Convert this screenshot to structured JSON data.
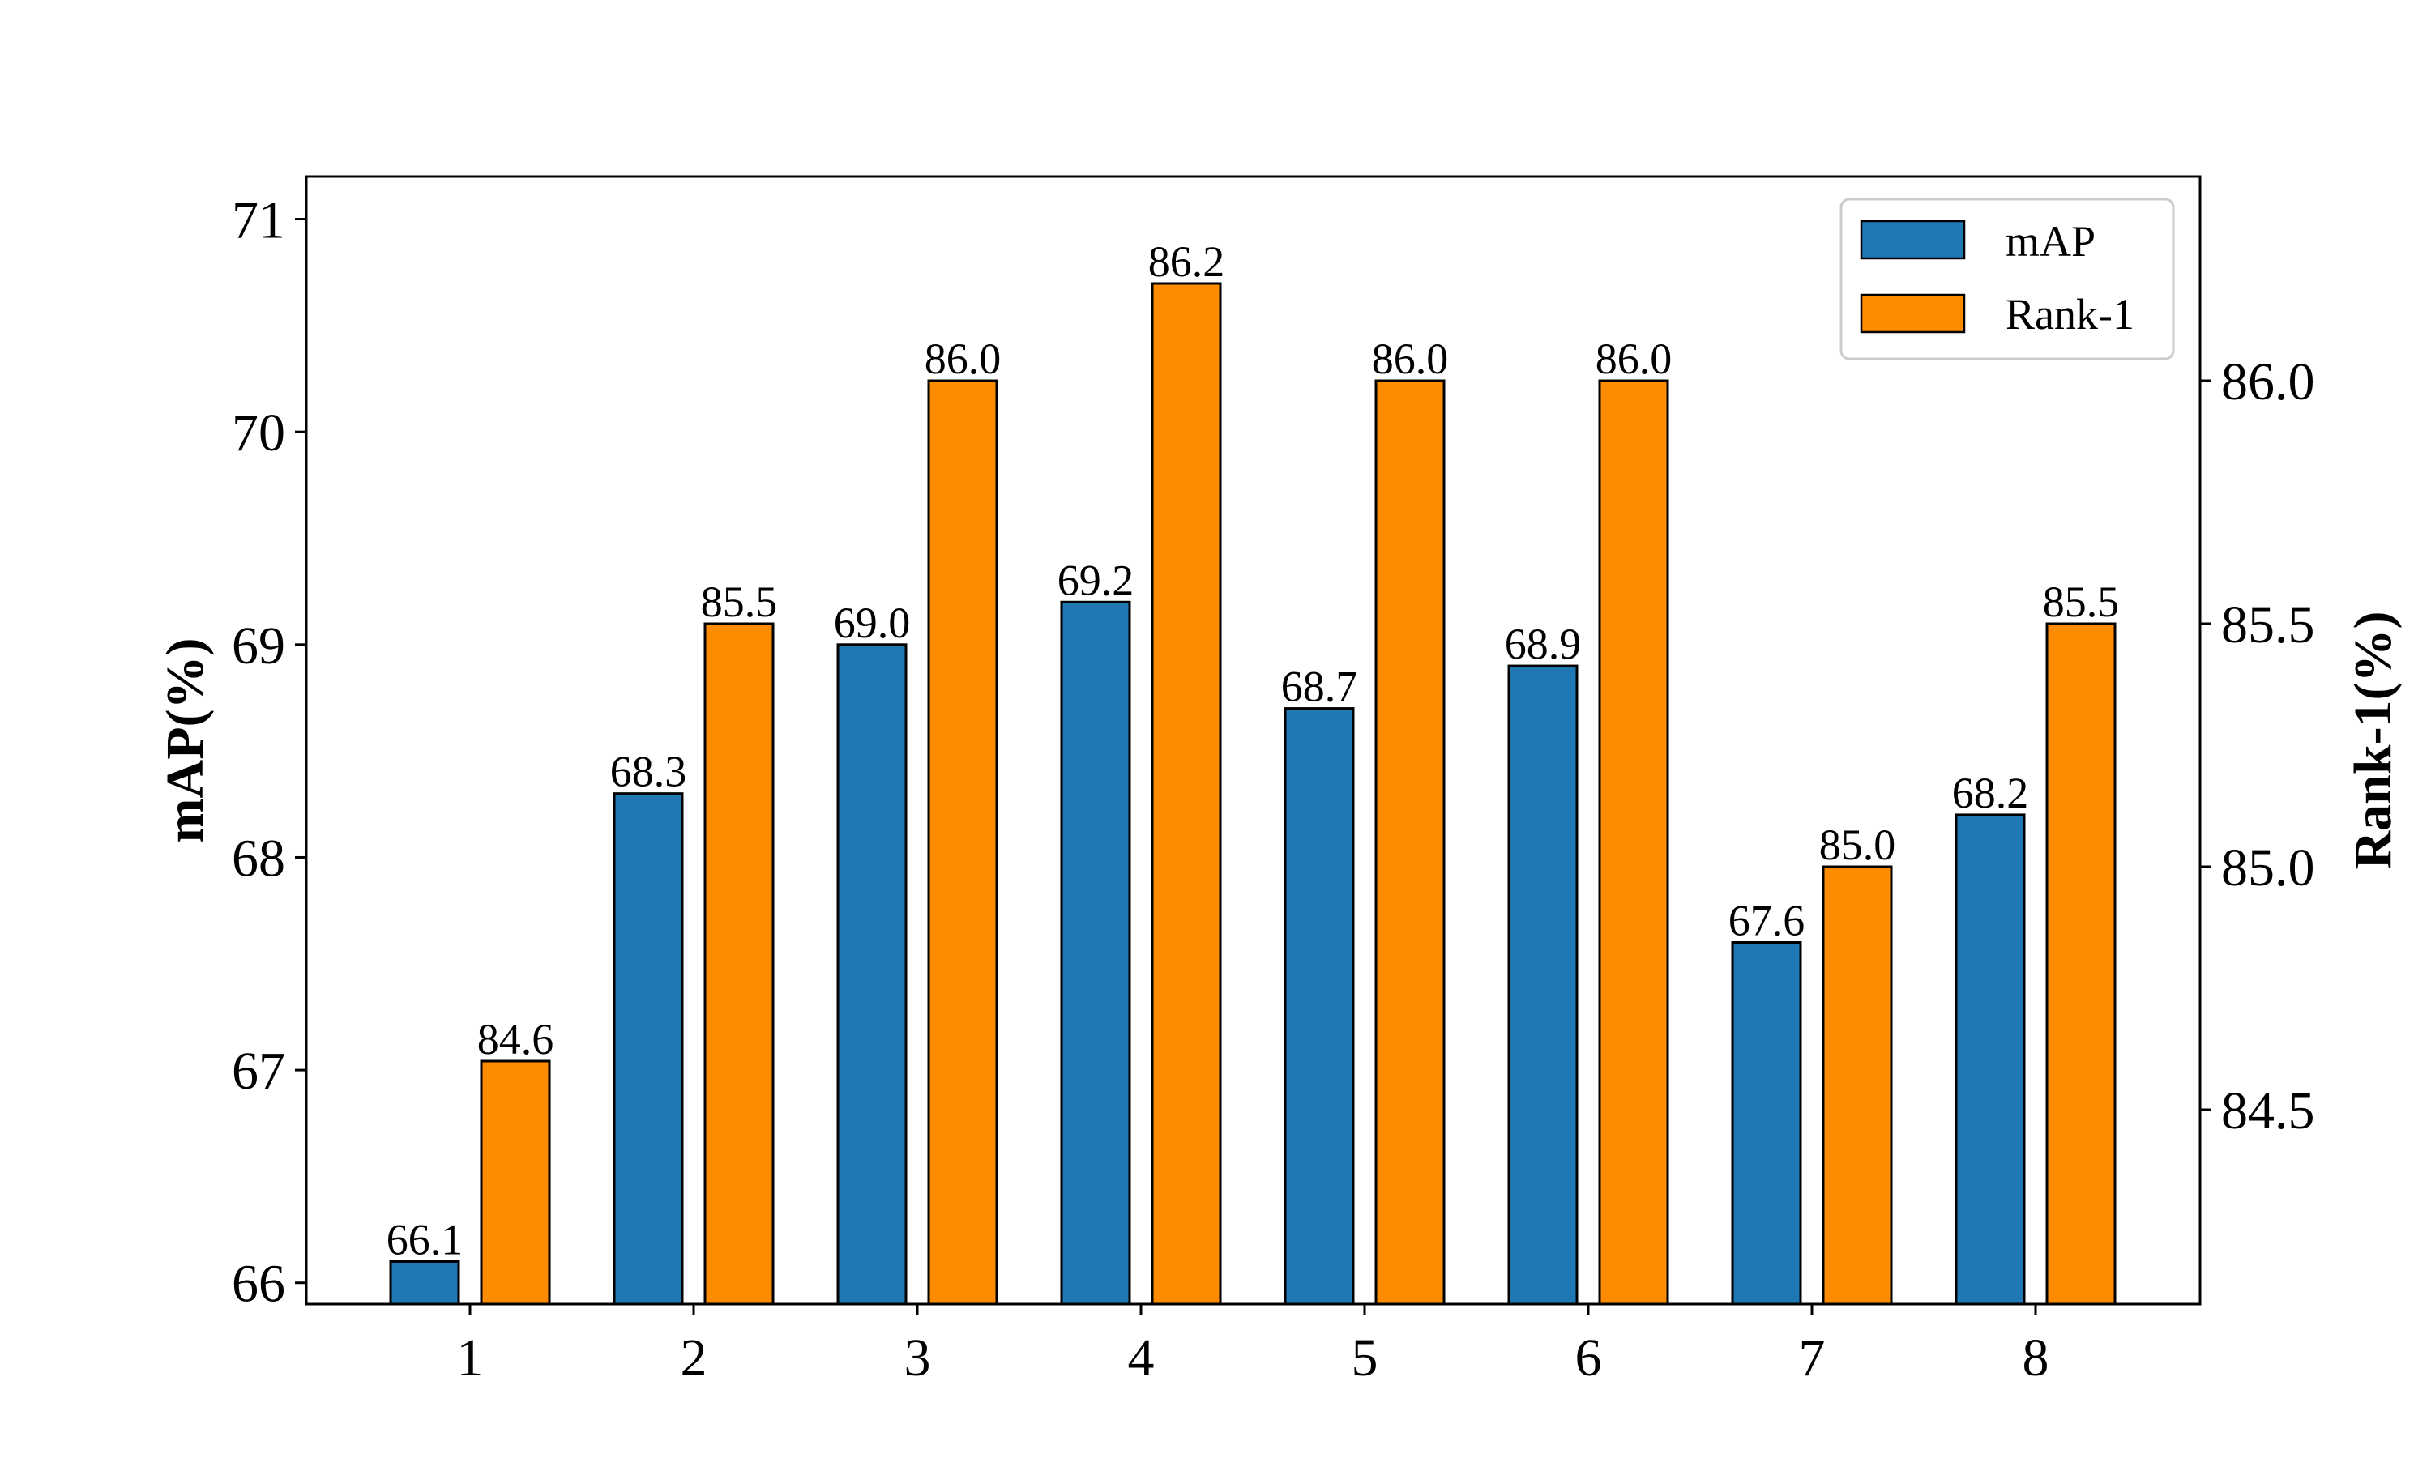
{
  "chart_data": {
    "type": "bar",
    "categories": [
      "1",
      "2",
      "3",
      "4",
      "5",
      "6",
      "7",
      "8"
    ],
    "series": [
      {
        "name": "mAP",
        "axis": "left",
        "color": "#1f77b4",
        "values": [
          66.1,
          68.3,
          69.0,
          69.2,
          68.7,
          68.9,
          67.6,
          68.2
        ],
        "labels": [
          "66.1",
          "68.3",
          "69.0",
          "69.2",
          "68.7",
          "68.9",
          "67.6",
          "68.2"
        ]
      },
      {
        "name": "Rank-1",
        "axis": "right",
        "color": "#ff8c00",
        "values": [
          84.6,
          85.5,
          86.0,
          86.2,
          86.0,
          86.0,
          85.0,
          85.5
        ],
        "labels": [
          "84.6",
          "85.5",
          "86.0",
          "86.2",
          "86.0",
          "86.0",
          "85.0",
          "85.5"
        ]
      }
    ],
    "ylabel": "mAP(%)",
    "y2label": "Rank-1(%)",
    "xlabel": "",
    "ylim": [
      65.9,
      71.2
    ],
    "y2lim": [
      84.1,
      86.42
    ],
    "yticks": [
      "66",
      "67",
      "68",
      "69",
      "70",
      "71"
    ],
    "y2ticks": [
      "84.5",
      "85.0",
      "85.5",
      "86.0"
    ],
    "legend_position": "top-right",
    "grid": false
  }
}
